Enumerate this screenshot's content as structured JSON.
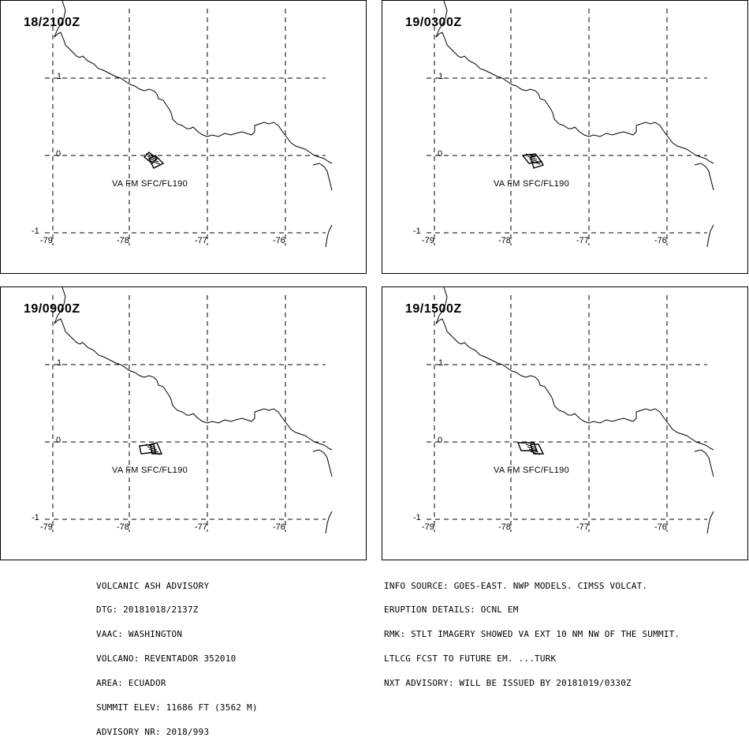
{
  "panels": [
    {
      "time": "18/2100Z",
      "hazard_label": "VA FM SFC/FL190"
    },
    {
      "time": "19/0300Z",
      "hazard_label": "VA FM SFC/FL190"
    },
    {
      "time": "19/0900Z",
      "hazard_label": "VA FM SFC/FL190"
    },
    {
      "time": "19/1500Z",
      "hazard_label": "VA FM SFC/FL190"
    }
  ],
  "axes": {
    "lon_labels": [
      "-79",
      "-78",
      "-77",
      "-76"
    ],
    "lat_labels": [
      "1",
      "0",
      "-1"
    ]
  },
  "advisory": {
    "lines": [
      "VOLCANIC ASH ADVISORY",
      "DTG: 20181018/2137Z",
      "VAAC: WASHINGTON",
      "VOLCANO: REVENTADOR 352010",
      "AREA: ECUADOR",
      "SUMMIT ELEV: 11686 FT (3562 M)",
      "ADVISORY NR: 2018/993"
    ]
  },
  "info": {
    "lines": [
      "INFO SOURCE: GOES-EAST. NWP MODELS. CIMSS VOLCAT.",
      "ERUPTION DETAILS: OCNL EM",
      "RMK: STLT IMAGERY SHOWED VA EXT 10 NM NW OF THE SUMMIT.",
      "LTLCG FCST TO FUTURE EM. ...TURK",
      "NXT ADVISORY: WILL BE ISSUED BY 20181019/0330Z"
    ]
  },
  "colors": {
    "line": "#000000",
    "background": "#ffffff"
  }
}
